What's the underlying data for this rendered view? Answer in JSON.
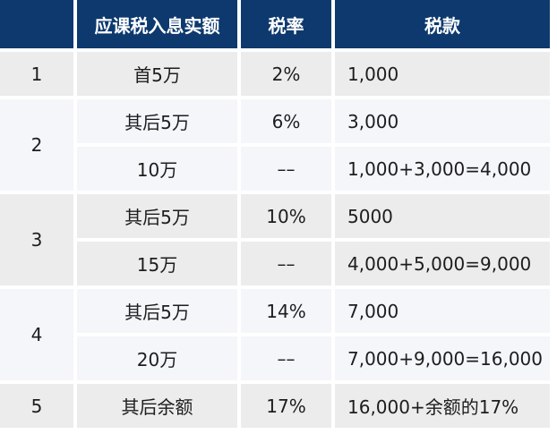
{
  "table": {
    "header": {
      "index": "",
      "income": "应课税入息实额",
      "rate": "税率",
      "tax": "税款"
    },
    "groups": [
      {
        "index": "1",
        "rows": [
          {
            "income": "首5万",
            "rate": "2%",
            "tax": "1,000"
          }
        ]
      },
      {
        "index": "2",
        "rows": [
          {
            "income": "其后5万",
            "rate": "6%",
            "tax": "3,000"
          },
          {
            "income": "10万",
            "rate": "––",
            "tax": "1,000+3,000=4,000"
          }
        ]
      },
      {
        "index": "3",
        "rows": [
          {
            "income": "其后5万",
            "rate": "10%",
            "tax": "5000"
          },
          {
            "income": "15万",
            "rate": "––",
            "tax": "4,000+5,000=9,000"
          }
        ]
      },
      {
        "index": "4",
        "rows": [
          {
            "income": "其后5万",
            "rate": "14%",
            "tax": "7,000"
          },
          {
            "income": "20万",
            "rate": "––",
            "tax": "7,000+9,000=16,000"
          }
        ]
      },
      {
        "index": "5",
        "rows": [
          {
            "income": "其后余额",
            "rate": "17%",
            "tax": "16,000+余额的17%"
          }
        ]
      }
    ],
    "colors": {
      "header_bg": "#0d396e",
      "header_text": "#ffffff",
      "row_gray": "#ececec",
      "row_light": "#f4f6fa",
      "body_text": "#1d1d1d",
      "gutter": "#ffffff"
    }
  }
}
